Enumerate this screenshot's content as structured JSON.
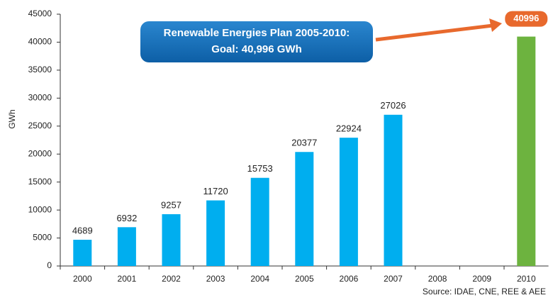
{
  "chart_data": {
    "type": "bar",
    "y_label": "GWh",
    "categories": [
      "2000",
      "2001",
      "2002",
      "2003",
      "2004",
      "2005",
      "2006",
      "2007",
      "2008",
      "2009",
      "2010"
    ],
    "values": [
      4689,
      6932,
      9257,
      11720,
      15753,
      20377,
      22924,
      27026,
      null,
      null,
      40996
    ],
    "colors": [
      "#00aeef",
      "#00aeef",
      "#00aeef",
      "#00aeef",
      "#00aeef",
      "#00aeef",
      "#00aeef",
      "#00aeef",
      null,
      null,
      "#6db33f"
    ],
    "ylim": [
      0,
      45000
    ],
    "yticks": [
      0,
      5000,
      10000,
      15000,
      20000,
      25000,
      30000,
      35000,
      40000,
      45000
    ],
    "annotation": [
      "Renewable Energies Plan 2005-2010:",
      "Goal: 40,996 GWh"
    ],
    "source": "Source: IDAE, CNE, REE & AEE"
  }
}
